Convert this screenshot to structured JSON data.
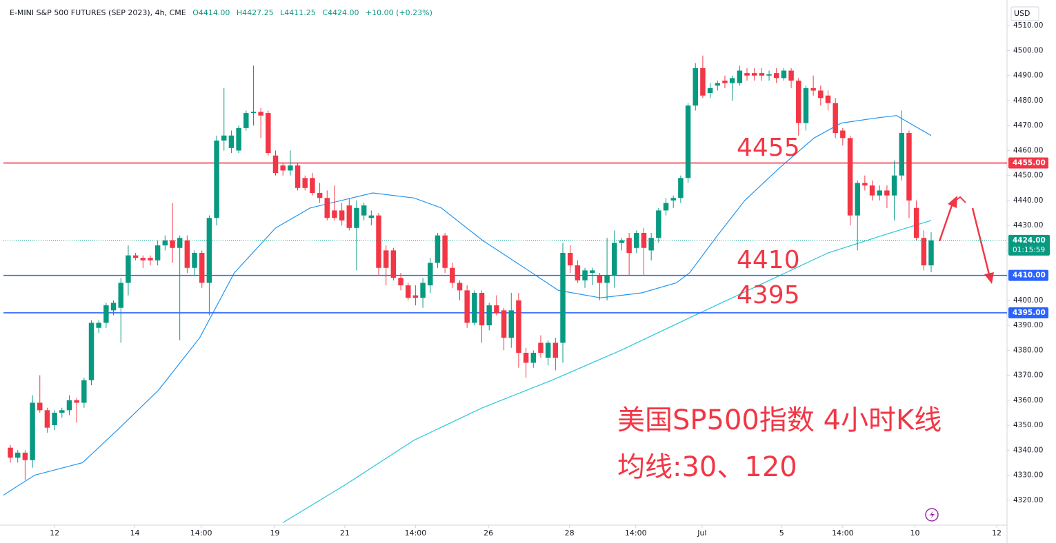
{
  "chart_data": {
    "type": "candlestick",
    "header": {
      "symbol": "E-MINI S&P 500 FUTURES (SEP 2023), 4h, CME",
      "open": "O4414.00",
      "high": "H4427.25",
      "low": "L4411.25",
      "close": "C4424.00",
      "change": "+10.00 (+0.23%)"
    },
    "currency": "USD",
    "up_color": "#089981",
    "down_color": "#f23645",
    "x": [
      0,
      1,
      2,
      3,
      4,
      5,
      6,
      7,
      8,
      9,
      10,
      11,
      12,
      13,
      14,
      15,
      16,
      17,
      18,
      19,
      20,
      21,
      22,
      23,
      24,
      25,
      26,
      27,
      28,
      29,
      30,
      31,
      32,
      33,
      34,
      35,
      36,
      37,
      38,
      39,
      40,
      41,
      42,
      43,
      44,
      45,
      46,
      47,
      48,
      49,
      50,
      51,
      52,
      53,
      54,
      55,
      56,
      57,
      58,
      59,
      60,
      61,
      62,
      63,
      64,
      65,
      66,
      67,
      68,
      69,
      70,
      71,
      72,
      73,
      74,
      75,
      76,
      77,
      78,
      79,
      80,
      81,
      82,
      83,
      84,
      85,
      86,
      87,
      88,
      89,
      90,
      91,
      92,
      93,
      94,
      95,
      96,
      97,
      98,
      99,
      100,
      101,
      102,
      103,
      104,
      105,
      106,
      107,
      108,
      109,
      110,
      111,
      112,
      113,
      114,
      115,
      116,
      117,
      118,
      119,
      120,
      121,
      122,
      123,
      124,
      125
    ],
    "open": [
      4341,
      4337,
      4339,
      4336,
      4359,
      4356,
      4350,
      4355,
      4356,
      4360,
      4359,
      4368,
      4389,
      4391,
      4396,
      4397,
      4407,
      4418,
      4417,
      4417,
      4416,
      4422,
      4424,
      4421,
      4424,
      4413,
      4419,
      4407,
      4433,
      4464,
      4461,
      4460,
      4469,
      4475,
      4475.5,
      4475,
      4458,
      4454,
      4452,
      4454,
      4449,
      4449,
      4443,
      4441,
      4436,
      4436,
      4438,
      4429,
      4434,
      4433,
      4434,
      4420,
      4420,
      4409,
      4406,
      4402,
      4401,
      4406,
      4415,
      4426,
      4413,
      4407,
      4404,
      4391,
      4403,
      4390,
      4398,
      4396,
      4385,
      4400,
      4379,
      4375,
      4383,
      4377,
      4383,
      4383,
      4419,
      4414,
      4408,
      4411,
      4410,
      4407,
      4410,
      4423,
      4425,
      4421,
      4427,
      4420,
      4425,
      4436,
      4440,
      4441,
      4449,
      4478,
      4493,
      4483,
      4486,
      4488,
      4487,
      4487,
      4491,
      4491,
      4491,
      4490,
      4491,
      4489,
      4492,
      4488,
      4471,
      4485,
      4484,
      4482,
      4479,
      4468,
      4465,
      4434,
      4447,
      4446,
      4442,
      4444,
      4442,
      4450,
      4467,
      4437,
      4425,
      4414
    ],
    "high": [
      4342,
      4340,
      4340,
      4362,
      4370,
      4357,
      4356,
      4357,
      4362,
      4361,
      4369,
      4392,
      4392,
      4399,
      4400,
      4409,
      4422,
      4419,
      4418,
      4418,
      4424,
      4426,
      4439,
      4426,
      4426,
      4420,
      4420,
      4434,
      4466,
      4485,
      4468,
      4470,
      4476,
      4494,
      4477,
      4476,
      4460,
      4455,
      4460,
      4455,
      4450,
      4451,
      4447,
      4444,
      4446,
      4439,
      4441,
      4440,
      4439,
      4436,
      4435,
      4422,
      4421,
      4411,
      4407,
      4406,
      4409,
      4417,
      4427,
      4427,
      4415,
      4408,
      4406,
      4404,
      4404,
      4399,
      4402,
      4397,
      4403,
      4403,
      4381,
      4380,
      4386,
      4384,
      4385,
      4423,
      4422,
      4416,
      4413,
      4413,
      4411,
      4425,
      4428,
      4425,
      4427,
      4428,
      4429,
      4427,
      4437,
      4441,
      4442,
      4450,
      4479,
      4495,
      4498,
      4487,
      4488,
      4490,
      4490,
      4494,
      4493,
      4493,
      4493,
      4492,
      4493,
      4493,
      4493,
      4489,
      4486,
      4490,
      4486,
      4484,
      4481,
      4469,
      4466,
      4448,
      4450,
      4448,
      4446,
      4446,
      4456,
      4476,
      4468,
      4440,
      4428,
      4427.25
    ],
    "low": [
      4335,
      4335,
      4328,
      4333,
      4355,
      4347,
      4348,
      4353,
      4354,
      4351,
      4357,
      4366,
      4387,
      4389,
      4394,
      4383,
      4402,
      4416,
      4413,
      4414,
      4414,
      4420,
      4415,
      4384,
      4411,
      4410,
      4405,
      4394,
      4430,
      4460,
      4459,
      4459,
      4468,
      4470,
      4465,
      4458,
      4450,
      4450,
      4450,
      4444,
      4444,
      4442,
      4439,
      4432,
      4432,
      4430,
      4428,
      4412,
      4432,
      4430,
      4410,
      4406,
      4408,
      4404,
      4400,
      4398,
      4397,
      4403,
      4413,
      4411,
      4405,
      4400,
      4389,
      4390,
      4383,
      4388,
      4394,
      4380,
      4381,
      4373,
      4369,
      4373,
      4377,
      4374,
      4372,
      4375,
      4411,
      4407,
      4405,
      4406,
      4400,
      4400,
      4405,
      4420,
      4410,
      4419,
      4410,
      4416,
      4423,
      4434,
      4437,
      4439,
      4447,
      4476,
      4481,
      4481,
      4484,
      4485,
      4480,
      4486,
      4488,
      4488,
      4488,
      4488,
      4487,
      4488,
      4485,
      4466,
      4468,
      4482,
      4478,
      4476,
      4465,
      4462,
      4430,
      4420,
      4444,
      4440,
      4440,
      4437,
      4432,
      4448,
      4433,
      4424,
      4412,
      4411.25
    ],
    "close": [
      4337,
      4339,
      4336,
      4359,
      4356,
      4349,
      4355,
      4356,
      4360,
      4359,
      4368,
      4391,
      4391,
      4398,
      4399,
      4407,
      4418,
      4417,
      4416,
      4416,
      4422,
      4424,
      4421,
      4425,
      4413,
      4419,
      4407,
      4433,
      4464,
      4466,
      4466,
      4469,
      4475,
      4475.5,
      4474,
      4459,
      4451,
      4452,
      4454,
      4445,
      4445,
      4443,
      4441,
      4433,
      4433,
      4432,
      4429,
      4437,
      4438,
      4434,
      4413,
      4413,
      4409,
      4406,
      4401,
      4401,
      4407,
      4415,
      4426,
      4413,
      4407,
      4404,
      4391,
      4403,
      4390,
      4398,
      4395,
      4385,
      4396,
      4379,
      4375,
      4379,
      4379,
      4383,
      4377,
      4419,
      4414,
      4408,
      4412,
      4412,
      4407,
      4410,
      4423,
      4424,
      4419,
      4427,
      4421,
      4425,
      4436,
      4439,
      4441,
      4449,
      4478,
      4493,
      4482,
      4485,
      4487,
      4487,
      4489,
      4492,
      4490,
      4490,
      4490,
      4490.5,
      4489,
      4492,
      4488,
      4471,
      4485,
      4484,
      4481,
      4479,
      4467,
      4465,
      4434,
      4447,
      4446,
      4442,
      4444,
      4442,
      4450,
      4467,
      4440,
      4425,
      4414,
      4424
    ],
    "lines": [
      {
        "color": "#2196f3",
        "x": [
          -0.94,
          3.3,
          9.8,
          14.5,
          20.1,
          25.7,
          30.4,
          36,
          40.7,
          49.2,
          54.8,
          58.5,
          64.1,
          69.8,
          74.4,
          80.1,
          85.7,
          90.4,
          92.2,
          96,
          99.7,
          104.4,
          109.1,
          112.8,
          117.5,
          120.3,
          125
        ],
        "values": [
          4322,
          4330,
          4335,
          4348,
          4364,
          4385,
          4411,
          4429,
          4437,
          4443,
          4441,
          4437,
          4424,
          4413,
          4404,
          4401,
          4403,
          4407,
          4411,
          4426,
          4440,
          4453,
          4465,
          4471,
          4473,
          4474,
          4466
        ]
      },
      {
        "color": "#26c6da",
        "x": [
          37,
          45.4,
          54.8,
          64.1,
          73.5,
          82.9,
          92.2,
          101.6,
          111,
          118.4,
          125
        ],
        "values": [
          4311,
          4326,
          4344,
          4357,
          4368,
          4380,
          4393,
          4406,
          4419,
          4426,
          4432
        ]
      }
    ],
    "levels": [
      {
        "value": 4455,
        "label": "4455.00",
        "note": "4455",
        "color": "#f23645"
      },
      {
        "value": 4410,
        "label": "4410.00",
        "note": "4410",
        "color": "#2962ff"
      },
      {
        "value": 4395,
        "label": "4395.00",
        "note": "4395",
        "color": "#2962ff"
      }
    ],
    "last": {
      "value": 4424,
      "label": "4424.00",
      "countdown": "01:15:59"
    },
    "annotations": [
      "美国SP500指数 4小时K线",
      "均线:30、120"
    ],
    "xlim": [
      -0.94,
      135.3
    ],
    "xticks": [
      {
        "value": 6,
        "label": "12"
      },
      {
        "value": 16.9,
        "label": "14"
      },
      {
        "value": 25.9,
        "label": "14:00"
      },
      {
        "value": 35.9,
        "label": "19"
      },
      {
        "value": 45.4,
        "label": "21"
      },
      {
        "value": 55,
        "label": "14:00"
      },
      {
        "value": 64.9,
        "label": "26"
      },
      {
        "value": 75.9,
        "label": "28"
      },
      {
        "value": 84.9,
        "label": "14:00"
      },
      {
        "value": 93.9,
        "label": "Jul"
      },
      {
        "value": 104.7,
        "label": "5"
      },
      {
        "value": 113,
        "label": "14:00"
      },
      {
        "value": 122.8,
        "label": "10"
      },
      {
        "value": 133.9,
        "label": "12"
      }
    ],
    "ylim": [
      4310,
      4512
    ],
    "yticks": [
      {
        "value": 4320,
        "label": "4320.00"
      },
      {
        "value": 4330,
        "label": "4330.00"
      },
      {
        "value": 4340,
        "label": "4340.00"
      },
      {
        "value": 4350,
        "label": "4350.00"
      },
      {
        "value": 4360,
        "label": "4360.00"
      },
      {
        "value": 4370,
        "label": "4370.00"
      },
      {
        "value": 4380,
        "label": "4380.00"
      },
      {
        "value": 4390,
        "label": "4390.00"
      },
      {
        "value": 4400,
        "label": "4400.00"
      },
      {
        "value": 4410,
        "label": "4410.00"
      },
      {
        "value": 4420,
        "label": "4420.00"
      },
      {
        "value": 4430,
        "label": "4430.00"
      },
      {
        "value": 4440,
        "label": "4440.00"
      },
      {
        "value": 4450,
        "label": "4450.00"
      },
      {
        "value": 4460,
        "label": "4460.00"
      },
      {
        "value": 4470,
        "label": "4470.00"
      },
      {
        "value": 4480,
        "label": "4480.00"
      },
      {
        "value": 4490,
        "label": "4490.00"
      },
      {
        "value": 4500,
        "label": "4500.00"
      },
      {
        "value": 4510,
        "label": "4510.00"
      }
    ]
  }
}
